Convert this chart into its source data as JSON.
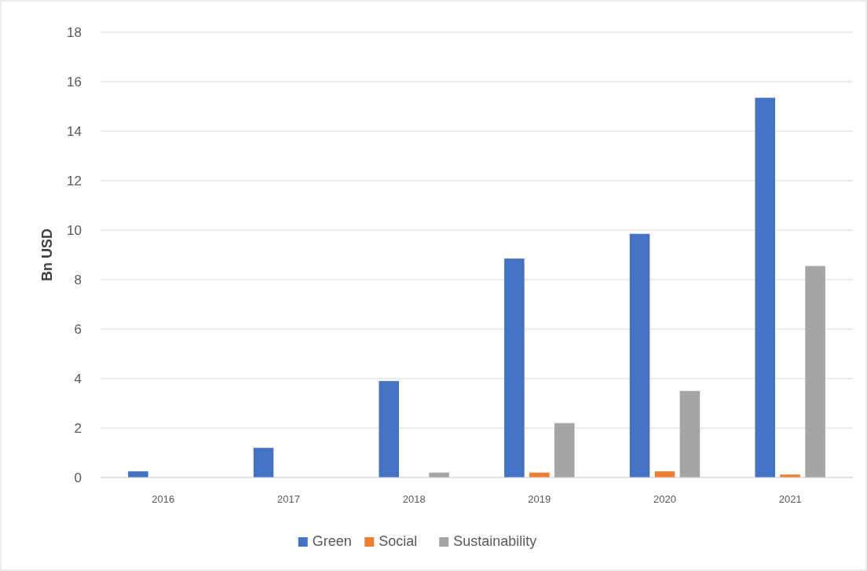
{
  "chart_data": {
    "type": "bar",
    "ylabel": "Bn USD",
    "categories": [
      "2016",
      "2017",
      "2018",
      "2019",
      "2020",
      "2021"
    ],
    "series": [
      {
        "name": "Green",
        "color": "#4472c4",
        "values": [
          0.25,
          1.2,
          3.9,
          8.85,
          9.85,
          15.35
        ]
      },
      {
        "name": "Social",
        "color": "#ed7d31",
        "values": [
          0,
          0,
          0,
          0.2,
          0.25,
          0.12
        ]
      },
      {
        "name": "Sustainability",
        "color": "#a5a5a5",
        "values": [
          0,
          0,
          0.2,
          2.2,
          3.5,
          8.55
        ]
      }
    ],
    "ylim": [
      0,
      18
    ],
    "yticks": [
      0,
      2,
      4,
      6,
      8,
      10,
      12,
      14,
      16,
      18
    ],
    "grid": "y",
    "legend": "bottom"
  }
}
